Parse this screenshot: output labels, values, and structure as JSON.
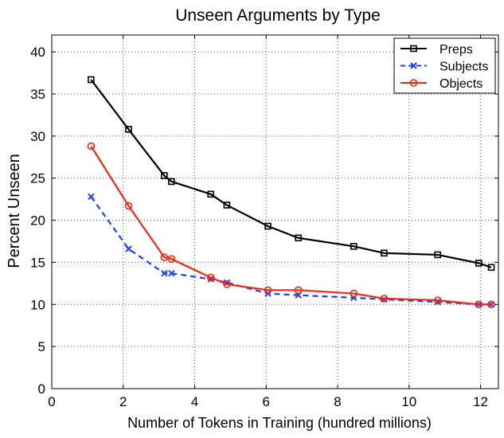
{
  "chart_data": {
    "type": "line",
    "title": "Unseen Arguments by Type",
    "xlabel": "Number of Tokens in Training (hundred millions)",
    "ylabel": "Percent Unseen",
    "xlim": [
      0,
      12.5
    ],
    "ylim": [
      0,
      42
    ],
    "xticks": [
      0,
      2,
      4,
      6,
      8,
      10,
      12
    ],
    "yticks": [
      0,
      5,
      10,
      15,
      20,
      25,
      30,
      35,
      40
    ],
    "grid": true,
    "legend_position": "top-right",
    "series": [
      {
        "name": "Preps",
        "color": "#000000",
        "line_style": "solid",
        "marker": "square",
        "x": [
          1.1,
          2.15,
          3.15,
          3.35,
          4.45,
          4.9,
          6.05,
          6.9,
          8.45,
          9.3,
          10.8,
          11.95,
          12.3
        ],
        "y": [
          36.7,
          30.8,
          25.3,
          24.6,
          23.1,
          21.8,
          19.3,
          17.9,
          16.9,
          16.1,
          15.9,
          14.9,
          14.4
        ]
      },
      {
        "name": "Subjects",
        "color": "#1f3fff",
        "line_style": "dashed",
        "marker": "x",
        "x": [
          1.1,
          2.15,
          3.15,
          3.35,
          4.45,
          4.9,
          6.05,
          6.9,
          8.45,
          9.3,
          10.8,
          11.95,
          12.3
        ],
        "y": [
          22.8,
          16.6,
          13.7,
          13.7,
          13.0,
          12.6,
          11.3,
          11.1,
          10.8,
          10.6,
          10.3,
          10.0,
          10.0
        ]
      },
      {
        "name": "Objects",
        "color": "#ee2a10",
        "line_style": "solid",
        "marker": "circle",
        "x": [
          1.1,
          2.15,
          3.15,
          3.35,
          4.45,
          4.9,
          6.05,
          6.9,
          8.45,
          9.3,
          10.8,
          11.95,
          12.3
        ],
        "y": [
          28.8,
          21.7,
          15.6,
          15.4,
          13.2,
          12.4,
          11.7,
          11.7,
          11.3,
          10.7,
          10.5,
          10.0,
          10.0
        ]
      }
    ]
  }
}
